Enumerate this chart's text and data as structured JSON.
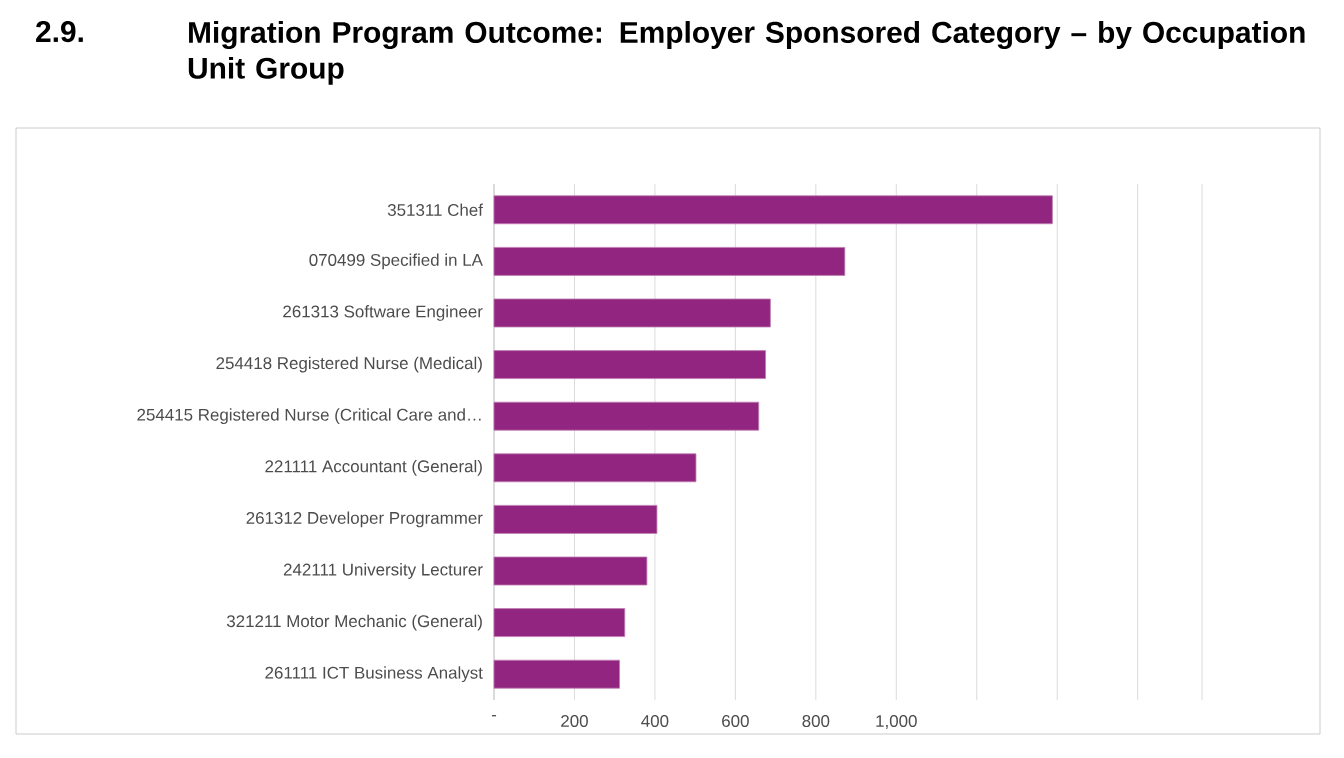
{
  "chart_data": {
    "type": "bar",
    "orientation": "horizontal",
    "title": "Migration Program Outcome: Employer Sponsored Category – by Occupation Unit Group",
    "annotations": [
      "2.9."
    ],
    "categories": [
      "351311 Chef",
      "070499 Specified in LA",
      "261313 Software Engineer",
      "254418 Registered Nurse (Medical)",
      "254415 Registered Nurse (Critical Care and…",
      "221111 Accountant (General)",
      "261312 Developer Programmer",
      "242111 University Lecturer",
      "321211 Motor Mechanic (General)",
      "261111 ICT Business Analyst"
    ],
    "values": [
      1388,
      872,
      687,
      675,
      658,
      502,
      405,
      380,
      325,
      312
    ],
    "color": "#92257f",
    "xlim": [
      0,
      1760
    ],
    "xticks": [
      {
        "value": 0,
        "label": "-"
      },
      200,
      400,
      600,
      800,
      {
        "value": 1000,
        "label": "1,000"
      },
      {
        "value": 1200,
        "label": null
      },
      {
        "value": 1400,
        "label": null
      },
      {
        "value": 1600,
        "label": null
      }
    ],
    "grid": "x"
  }
}
